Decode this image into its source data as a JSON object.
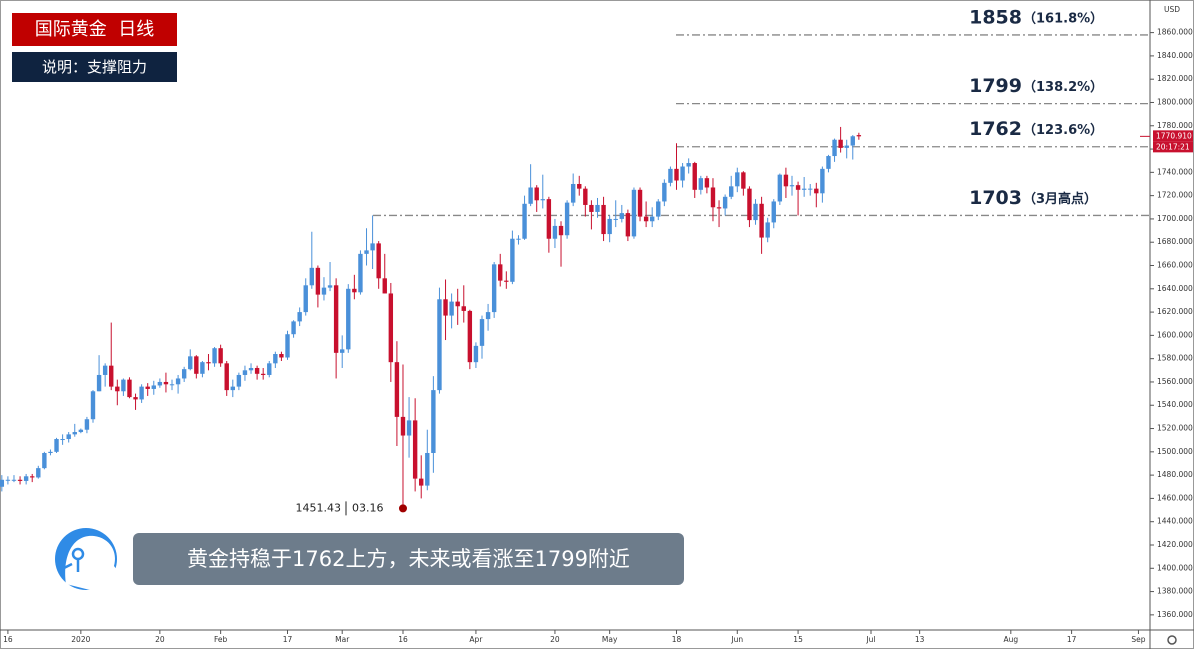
{
  "chart_data": {
    "type": "candlestick",
    "title": "国际黄金  日线",
    "subtitle": "说明：支撑阻力",
    "annotation": "黄金持稳于1762上方，未来或看涨至1799附近",
    "currency": "USD",
    "up_color": "#4a90d9",
    "down_color": "#c8102e",
    "level_color": "#888888",
    "ylim": [
      1347,
      1888
    ],
    "xlim": [
      -0.3,
      188.9
    ],
    "yticks": [
      {
        "value": 1360,
        "label": "1360.000"
      },
      {
        "value": 1380,
        "label": "1380.000"
      },
      {
        "value": 1400,
        "label": "1400.000"
      },
      {
        "value": 1420,
        "label": "1420.000"
      },
      {
        "value": 1440,
        "label": "1440.000"
      },
      {
        "value": 1460,
        "label": "1460.000"
      },
      {
        "value": 1480,
        "label": "1480.000"
      },
      {
        "value": 1500,
        "label": "1500.000"
      },
      {
        "value": 1520,
        "label": "1520.000"
      },
      {
        "value": 1540,
        "label": "1540.000"
      },
      {
        "value": 1560,
        "label": "1560.000"
      },
      {
        "value": 1580,
        "label": "1580.000"
      },
      {
        "value": 1600,
        "label": "1600.000"
      },
      {
        "value": 1620,
        "label": "1620.000"
      },
      {
        "value": 1640,
        "label": "1640.000"
      },
      {
        "value": 1660,
        "label": "1660.000"
      },
      {
        "value": 1680,
        "label": "1680.000"
      },
      {
        "value": 1700,
        "label": "1700.000"
      },
      {
        "value": 1720,
        "label": "1720.000"
      },
      {
        "value": 1740,
        "label": "1740.000"
      },
      {
        "value": 1760,
        "label": "1760.000"
      },
      {
        "value": 1780,
        "label": "1780.000"
      },
      {
        "value": 1800,
        "label": "1800.000"
      },
      {
        "value": 1820,
        "label": "1820.000"
      },
      {
        "value": 1840,
        "label": "1840.000"
      },
      {
        "value": 1860,
        "label": "1860.000"
      }
    ],
    "xticks": [
      {
        "value": 1,
        "label": "16"
      },
      {
        "value": 13,
        "label": "2020"
      },
      {
        "value": 26,
        "label": "20"
      },
      {
        "value": 36,
        "label": "Feb"
      },
      {
        "value": 47,
        "label": "17"
      },
      {
        "value": 56,
        "label": "Mar"
      },
      {
        "value": 66,
        "label": "16"
      },
      {
        "value": 78,
        "label": "Apr"
      },
      {
        "value": 91,
        "label": "20"
      },
      {
        "value": 100,
        "label": "May"
      },
      {
        "value": 111,
        "label": "18"
      },
      {
        "value": 121,
        "label": "Jun"
      },
      {
        "value": 131,
        "label": "15"
      },
      {
        "value": 143,
        "label": "Jul"
      },
      {
        "value": 151,
        "label": "13"
      },
      {
        "value": 166,
        "label": "Aug"
      },
      {
        "value": 176,
        "label": "17"
      },
      {
        "value": 187,
        "label": "Sep"
      }
    ],
    "ohlc": [
      [
        1470,
        1480,
        1466,
        1476
      ],
      [
        1476,
        1479,
        1472,
        1476
      ],
      [
        1476,
        1480,
        1474,
        1476
      ],
      [
        1476,
        1479,
        1472,
        1475
      ],
      [
        1475,
        1481,
        1472,
        1479
      ],
      [
        1479,
        1481,
        1474,
        1478
      ],
      [
        1478,
        1488,
        1477,
        1486
      ],
      [
        1486,
        1500,
        1485,
        1499
      ],
      [
        1499,
        1502,
        1497,
        1500
      ],
      [
        1500,
        1512,
        1499,
        1511
      ],
      [
        1511,
        1515,
        1506,
        1511
      ],
      [
        1511,
        1517,
        1508,
        1515
      ],
      [
        1515,
        1524,
        1513,
        1517
      ],
      [
        1517,
        1520,
        1516,
        1519
      ],
      [
        1519,
        1530,
        1516,
        1528
      ],
      [
        1528,
        1553,
        1525,
        1552
      ],
      [
        1552,
        1583,
        1552,
        1566
      ],
      [
        1566,
        1576,
        1556,
        1574
      ],
      [
        1574,
        1611,
        1553,
        1556
      ],
      [
        1556,
        1562,
        1540,
        1552
      ],
      [
        1552,
        1563,
        1548,
        1562
      ],
      [
        1562,
        1564,
        1546,
        1547
      ],
      [
        1547,
        1550,
        1536,
        1545
      ],
      [
        1545,
        1558,
        1542,
        1556
      ],
      [
        1556,
        1559,
        1548,
        1554
      ],
      [
        1554,
        1561,
        1549,
        1557
      ],
      [
        1557,
        1563,
        1555,
        1560
      ],
      [
        1560,
        1568,
        1551,
        1558
      ],
      [
        1558,
        1562,
        1553,
        1558
      ],
      [
        1558,
        1566,
        1550,
        1563
      ],
      [
        1563,
        1573,
        1560,
        1571
      ],
      [
        1571,
        1588,
        1570,
        1582
      ],
      [
        1582,
        1583,
        1563,
        1567
      ],
      [
        1567,
        1578,
        1564,
        1577
      ],
      [
        1577,
        1584,
        1570,
        1576
      ],
      [
        1576,
        1590,
        1573,
        1589
      ],
      [
        1589,
        1592,
        1573,
        1576
      ],
      [
        1576,
        1578,
        1548,
        1553
      ],
      [
        1553,
        1562,
        1547,
        1556
      ],
      [
        1556,
        1568,
        1553,
        1566
      ],
      [
        1566,
        1574,
        1561,
        1570
      ],
      [
        1570,
        1576,
        1567,
        1572
      ],
      [
        1572,
        1574,
        1562,
        1567
      ],
      [
        1567,
        1572,
        1562,
        1566
      ],
      [
        1566,
        1578,
        1564,
        1576
      ],
      [
        1576,
        1586,
        1572,
        1584
      ],
      [
        1584,
        1586,
        1578,
        1581
      ],
      [
        1581,
        1604,
        1579,
        1601
      ],
      [
        1601,
        1613,
        1598,
        1612
      ],
      [
        1612,
        1624,
        1608,
        1620
      ],
      [
        1620,
        1649,
        1617,
        1643
      ],
      [
        1643,
        1689,
        1640,
        1658
      ],
      [
        1658,
        1660,
        1624,
        1635
      ],
      [
        1635,
        1650,
        1630,
        1641
      ],
      [
        1641,
        1663,
        1638,
        1643
      ],
      [
        1643,
        1649,
        1563,
        1585
      ],
      [
        1585,
        1600,
        1572,
        1588
      ],
      [
        1588,
        1644,
        1585,
        1640
      ],
      [
        1640,
        1652,
        1631,
        1637
      ],
      [
        1637,
        1673,
        1635,
        1670
      ],
      [
        1670,
        1692,
        1660,
        1673
      ],
      [
        1673,
        1703,
        1657,
        1679
      ],
      [
        1679,
        1681,
        1640,
        1649
      ],
      [
        1649,
        1670,
        1636,
        1636
      ],
      [
        1636,
        1645,
        1560,
        1577
      ],
      [
        1577,
        1595,
        1505,
        1530
      ],
      [
        1530,
        1575,
        1451,
        1514
      ],
      [
        1514,
        1547,
        1495,
        1527
      ],
      [
        1527,
        1546,
        1466,
        1477
      ],
      [
        1477,
        1497,
        1460,
        1471
      ],
      [
        1471,
        1519,
        1467,
        1499
      ],
      [
        1499,
        1565,
        1482,
        1553
      ],
      [
        1553,
        1641,
        1550,
        1631
      ],
      [
        1631,
        1648,
        1596,
        1617
      ],
      [
        1617,
        1636,
        1606,
        1629
      ],
      [
        1629,
        1640,
        1609,
        1625
      ],
      [
        1625,
        1643,
        1611,
        1621
      ],
      [
        1621,
        1622,
        1571,
        1577
      ],
      [
        1577,
        1594,
        1572,
        1591
      ],
      [
        1591,
        1617,
        1580,
        1614
      ],
      [
        1614,
        1627,
        1604,
        1620
      ],
      [
        1620,
        1663,
        1615,
        1661
      ],
      [
        1661,
        1670,
        1642,
        1647
      ],
      [
        1647,
        1655,
        1640,
        1646
      ],
      [
        1646,
        1690,
        1644,
        1683
      ],
      [
        1683,
        1686,
        1678,
        1683
      ],
      [
        1683,
        1720,
        1682,
        1713
      ],
      [
        1713,
        1747,
        1711,
        1727
      ],
      [
        1727,
        1729,
        1706,
        1716
      ],
      [
        1716,
        1738,
        1709,
        1717
      ],
      [
        1717,
        1719,
        1671,
        1683
      ],
      [
        1683,
        1700,
        1675,
        1694
      ],
      [
        1694,
        1698,
        1659,
        1686
      ],
      [
        1686,
        1716,
        1683,
        1714
      ],
      [
        1714,
        1739,
        1711,
        1730
      ],
      [
        1730,
        1737,
        1720,
        1726
      ],
      [
        1726,
        1728,
        1702,
        1712
      ],
      [
        1712,
        1716,
        1691,
        1706
      ],
      [
        1706,
        1718,
        1701,
        1712
      ],
      [
        1712,
        1719,
        1681,
        1687
      ],
      [
        1687,
        1703,
        1680,
        1700
      ],
      [
        1700,
        1716,
        1693,
        1700
      ],
      [
        1700,
        1712,
        1697,
        1705
      ],
      [
        1705,
        1708,
        1681,
        1685
      ],
      [
        1685,
        1727,
        1683,
        1725
      ],
      [
        1725,
        1727,
        1698,
        1702
      ],
      [
        1702,
        1715,
        1693,
        1698
      ],
      [
        1698,
        1710,
        1693,
        1702
      ],
      [
        1702,
        1717,
        1699,
        1715
      ],
      [
        1715,
        1734,
        1711,
        1731
      ],
      [
        1731,
        1745,
        1728,
        1743
      ],
      [
        1743,
        1765,
        1725,
        1733
      ],
      [
        1733,
        1748,
        1727,
        1745
      ],
      [
        1745,
        1752,
        1739,
        1748
      ],
      [
        1748,
        1749,
        1718,
        1725
      ],
      [
        1725,
        1737,
        1721,
        1735
      ],
      [
        1735,
        1737,
        1722,
        1727
      ],
      [
        1727,
        1735,
        1698,
        1710
      ],
      [
        1710,
        1716,
        1693,
        1709
      ],
      [
        1709,
        1721,
        1703,
        1719
      ],
      [
        1719,
        1737,
        1717,
        1728
      ],
      [
        1728,
        1744,
        1723,
        1740
      ],
      [
        1740,
        1741,
        1720,
        1726
      ],
      [
        1726,
        1728,
        1693,
        1699
      ],
      [
        1699,
        1717,
        1695,
        1713
      ],
      [
        1713,
        1719,
        1670,
        1684
      ],
      [
        1684,
        1701,
        1680,
        1697
      ],
      [
        1697,
        1717,
        1692,
        1715
      ],
      [
        1715,
        1739,
        1712,
        1738
      ],
      [
        1738,
        1744,
        1718,
        1728
      ],
      [
        1728,
        1737,
        1720,
        1729
      ],
      [
        1729,
        1732,
        1703,
        1725
      ],
      [
        1725,
        1736,
        1719,
        1726
      ],
      [
        1726,
        1730,
        1720,
        1726
      ],
      [
        1726,
        1731,
        1710,
        1722
      ],
      [
        1722,
        1745,
        1714,
        1743
      ],
      [
        1743,
        1755,
        1740,
        1754
      ],
      [
        1754,
        1769,
        1749,
        1768
      ],
      [
        1768,
        1779,
        1757,
        1761
      ],
      [
        1761,
        1768,
        1752,
        1763
      ],
      [
        1763,
        1772,
        1751,
        1771
      ],
      [
        1772,
        1774,
        1768,
        1770.91
      ]
    ],
    "levels": [
      {
        "value": 1858,
        "note": "（161.8%）"
      },
      {
        "value": 1799,
        "note": "（138.2%）"
      },
      {
        "value": 1762,
        "note": "（123.6%）"
      },
      {
        "value": 1703,
        "note": "（3月高点）"
      }
    ],
    "low_marker": {
      "value": 1451.43,
      "date": "03.16"
    },
    "last_price": {
      "value": 1770.91,
      "label": "1770.910",
      "countdown": "20:17:21"
    }
  }
}
